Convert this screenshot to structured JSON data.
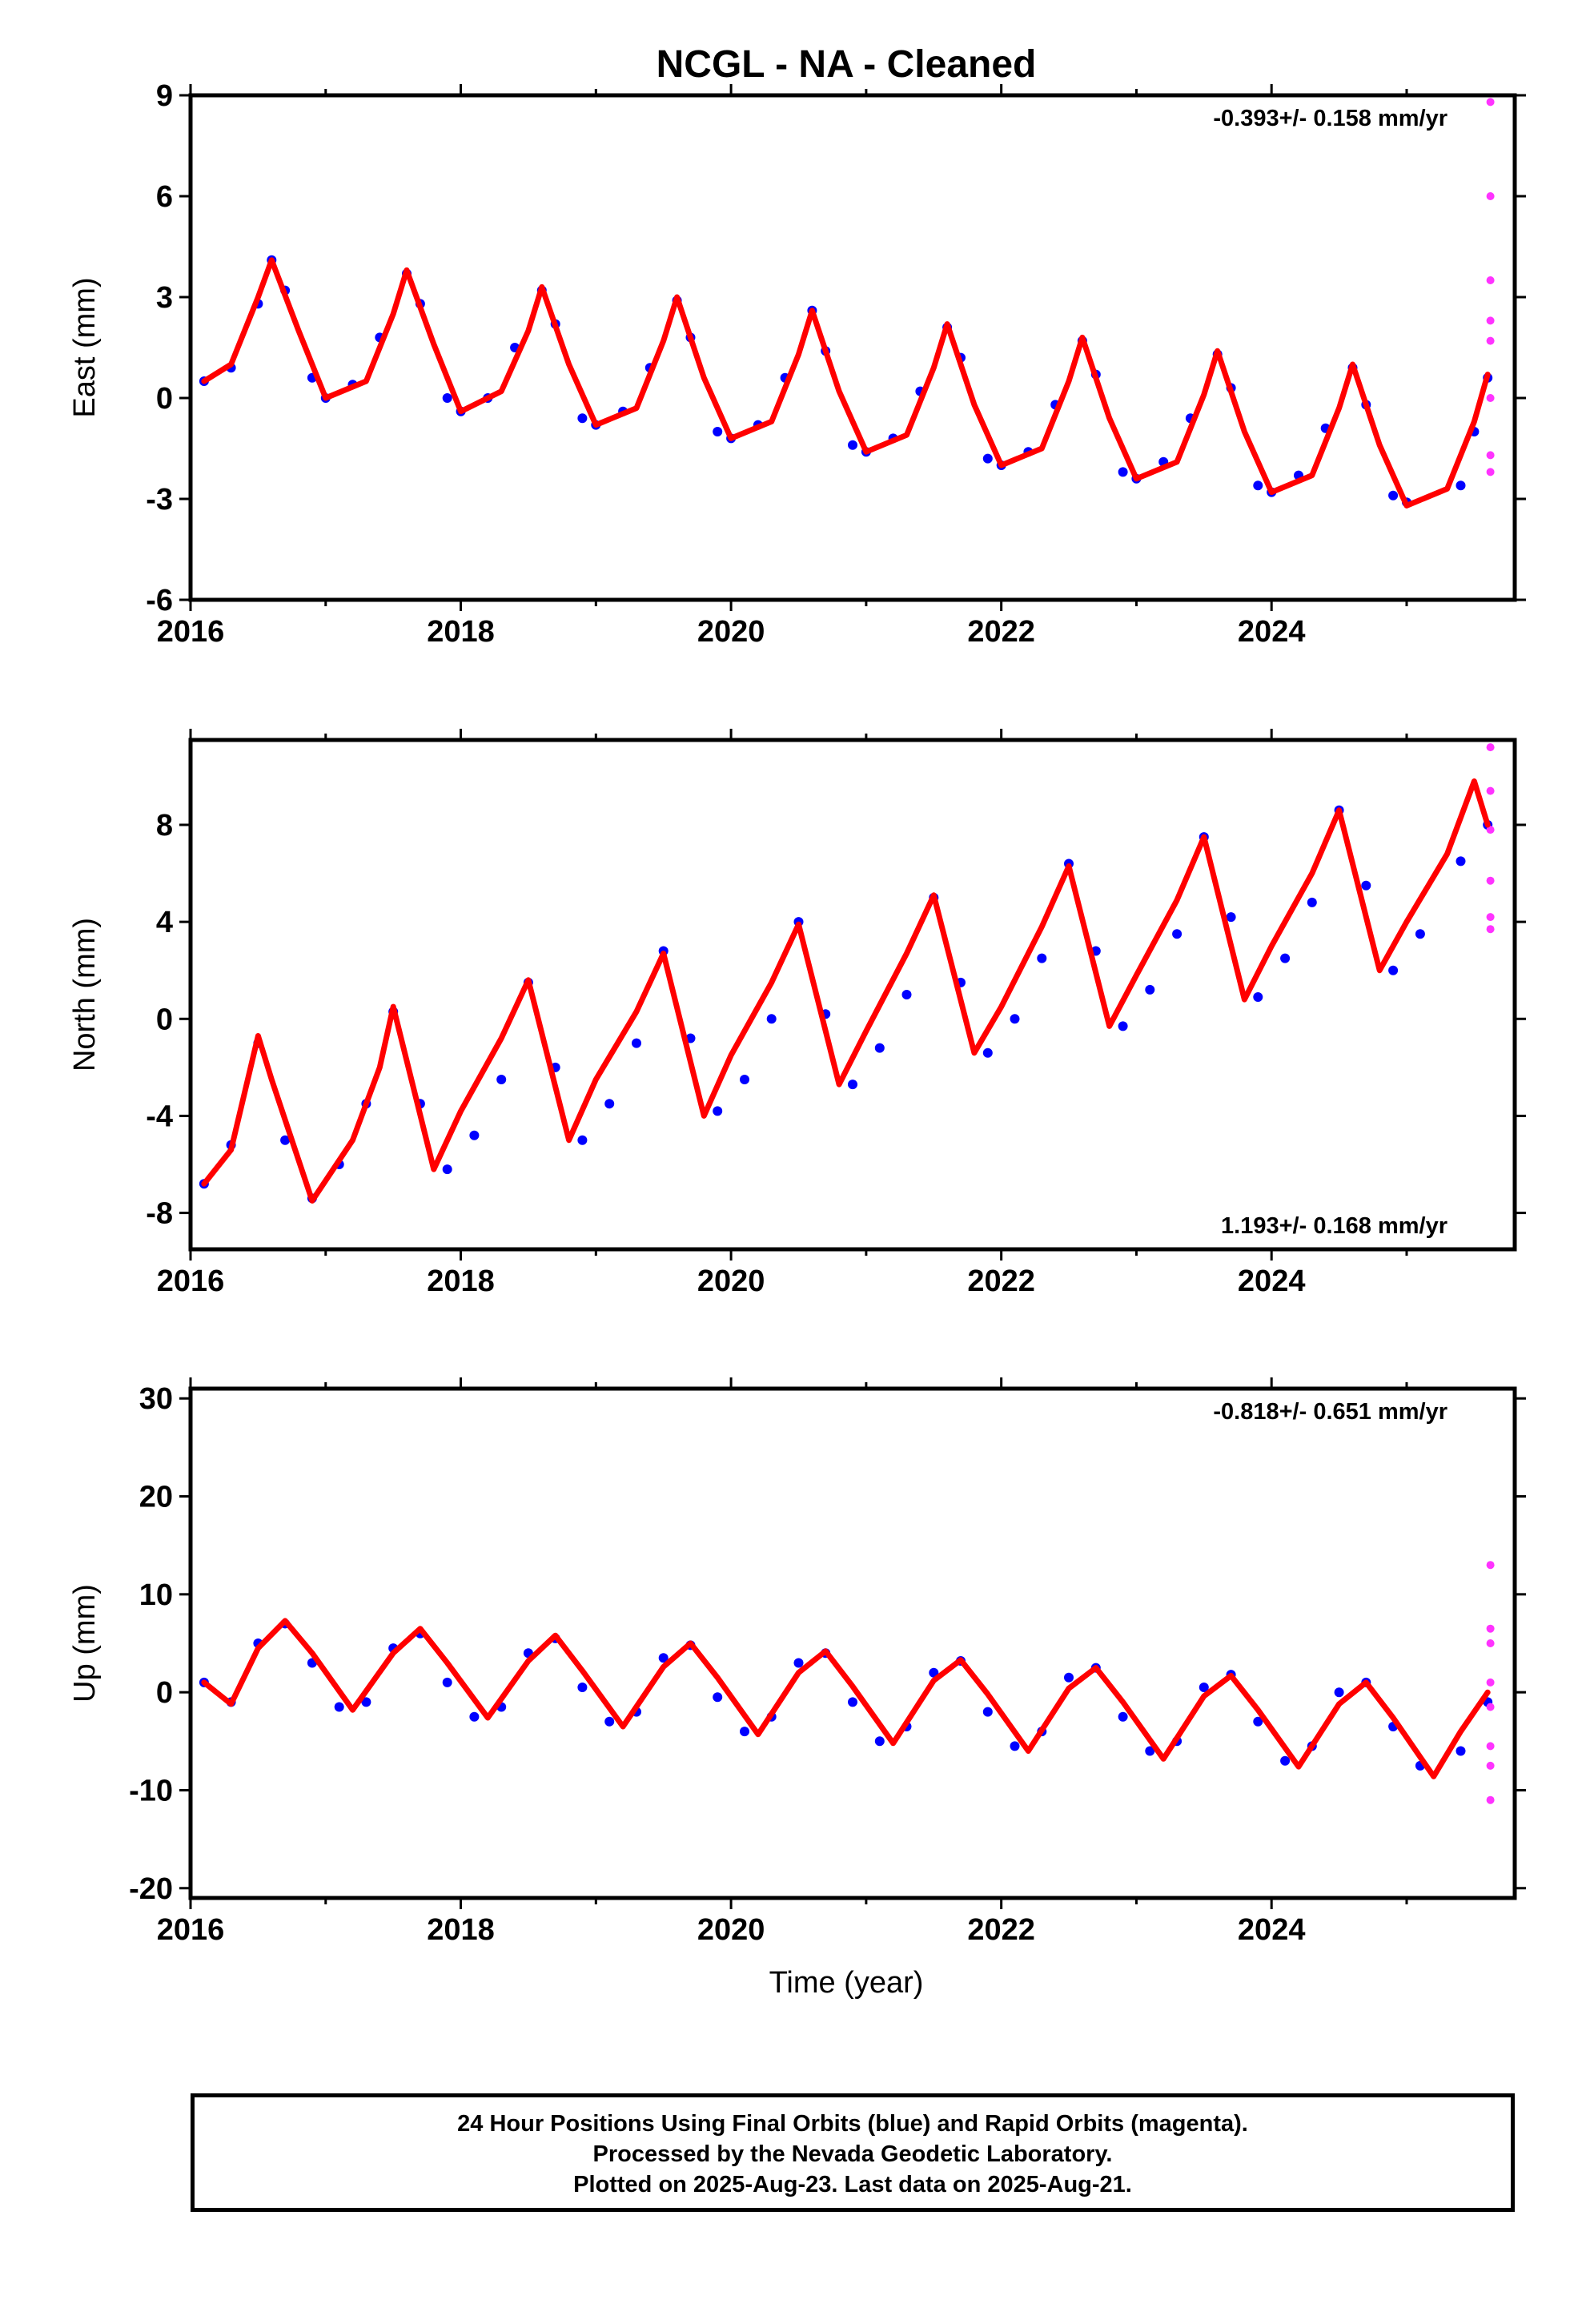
{
  "title": "NCGL  - NA - Cleaned",
  "xlabel": "Time (year)",
  "caption": [
    "24 Hour Positions Using Final Orbits (blue) and Rapid Orbits (magenta).",
    "Processed by the Nevada Geodetic Laboratory.",
    "Plotted on 2025-Aug-23. Last data on 2025-Aug-21."
  ],
  "colors": {
    "final_orbits": "#0000ff",
    "rapid_orbits": "#ff33ff",
    "model": "#ff0000",
    "axes": "#000000"
  },
  "chart_data": [
    {
      "type": "scatter",
      "ylabel": "East (mm)",
      "rate": "-0.393+/- 0.158 mm/yr",
      "rate_position": "top-right",
      "xlim": [
        2016.0,
        2025.8
      ],
      "ylim": [
        -6,
        9
      ],
      "xticks": [
        "2016",
        "2018",
        "2020",
        "2022",
        "2024"
      ],
      "yticks": [
        "9",
        "6",
        "3",
        "0",
        "-3",
        "-6"
      ],
      "grid": false,
      "series": [
        {
          "name": "Final Orbits",
          "color": "#0000ff",
          "x": [
            2016.1,
            2016.3,
            2016.5,
            2016.6,
            2016.7,
            2016.9,
            2017.0,
            2017.2,
            2017.4,
            2017.6,
            2017.7,
            2017.9,
            2018.0,
            2018.2,
            2018.4,
            2018.6,
            2018.7,
            2018.9,
            2019.0,
            2019.2,
            2019.4,
            2019.6,
            2019.7,
            2019.9,
            2020.0,
            2020.2,
            2020.4,
            2020.6,
            2020.7,
            2020.9,
            2021.0,
            2021.2,
            2021.4,
            2021.6,
            2021.7,
            2021.9,
            2022.0,
            2022.2,
            2022.4,
            2022.6,
            2022.7,
            2022.9,
            2023.0,
            2023.2,
            2023.4,
            2023.6,
            2023.7,
            2023.9,
            2024.0,
            2024.2,
            2024.4,
            2024.6,
            2024.7,
            2024.9,
            2025.0,
            2025.4,
            2025.5,
            2025.6
          ],
          "y": [
            0.5,
            0.9,
            2.8,
            4.1,
            3.2,
            0.6,
            0.0,
            0.4,
            1.8,
            3.7,
            2.8,
            0.0,
            -0.4,
            0.0,
            1.5,
            3.2,
            2.2,
            -0.6,
            -0.8,
            -0.4,
            0.9,
            2.9,
            1.8,
            -1.0,
            -1.2,
            -0.8,
            0.6,
            2.6,
            1.4,
            -1.4,
            -1.6,
            -1.2,
            0.2,
            2.1,
            1.2,
            -1.8,
            -2.0,
            -1.6,
            -0.2,
            1.7,
            0.7,
            -2.2,
            -2.4,
            -1.9,
            -0.6,
            1.3,
            0.3,
            -2.6,
            -2.8,
            -2.3,
            -0.9,
            0.9,
            -0.2,
            -2.9,
            -3.1,
            -2.6,
            -1.0,
            0.6
          ]
        },
        {
          "name": "Rapid Orbits",
          "color": "#ff33ff",
          "x": [
            2025.62,
            2025.62,
            2025.62,
            2025.62,
            2025.62,
            2025.62,
            2025.62,
            2025.62
          ],
          "y": [
            8.8,
            6.0,
            3.5,
            2.3,
            1.7,
            0.0,
            -1.7,
            -2.2
          ]
        },
        {
          "name": "Model",
          "color": "#ff0000",
          "x": [
            2016.1,
            2016.3,
            2016.5,
            2016.6,
            2016.8,
            2017.0,
            2017.3,
            2017.5,
            2017.6,
            2017.8,
            2018.0,
            2018.3,
            2018.5,
            2018.6,
            2018.8,
            2019.0,
            2019.3,
            2019.5,
            2019.6,
            2019.8,
            2020.0,
            2020.3,
            2020.5,
            2020.6,
            2020.8,
            2021.0,
            2021.3,
            2021.5,
            2021.6,
            2021.8,
            2022.0,
            2022.3,
            2022.5,
            2022.6,
            2022.8,
            2023.0,
            2023.3,
            2023.5,
            2023.6,
            2023.8,
            2024.0,
            2024.3,
            2024.5,
            2024.6,
            2024.8,
            2025.0,
            2025.3,
            2025.5,
            2025.6
          ],
          "y": [
            0.5,
            1.0,
            3.0,
            4.1,
            2.0,
            0.0,
            0.5,
            2.5,
            3.8,
            1.6,
            -0.4,
            0.2,
            2.0,
            3.3,
            1.0,
            -0.8,
            -0.3,
            1.7,
            3.0,
            0.6,
            -1.2,
            -0.7,
            1.3,
            2.6,
            0.2,
            -1.6,
            -1.1,
            0.9,
            2.2,
            -0.2,
            -2.0,
            -1.5,
            0.5,
            1.8,
            -0.6,
            -2.4,
            -1.9,
            0.1,
            1.4,
            -1.0,
            -2.8,
            -2.3,
            -0.3,
            1.0,
            -1.4,
            -3.2,
            -2.7,
            -0.7,
            0.7
          ]
        }
      ]
    },
    {
      "type": "scatter",
      "ylabel": "North (mm)",
      "rate": "1.193+/- 0.168 mm/yr",
      "rate_position": "bottom-right",
      "xlim": [
        2016.0,
        2025.8
      ],
      "ylim": [
        -9.5,
        11.5
      ],
      "xticks": [
        "2016",
        "2018",
        "2020",
        "2022",
        "2024"
      ],
      "yticks": [
        "8",
        "4",
        "0",
        "-4",
        "-8"
      ],
      "grid": false,
      "series": [
        {
          "name": "Final Orbits",
          "color": "#0000ff",
          "x": [
            2016.1,
            2016.3,
            2016.5,
            2016.7,
            2016.9,
            2017.1,
            2017.3,
            2017.5,
            2017.7,
            2017.9,
            2018.1,
            2018.3,
            2018.5,
            2018.7,
            2018.9,
            2019.1,
            2019.3,
            2019.5,
            2019.7,
            2019.9,
            2020.1,
            2020.3,
            2020.5,
            2020.7,
            2020.9,
            2021.1,
            2021.3,
            2021.5,
            2021.7,
            2021.9,
            2022.1,
            2022.3,
            2022.5,
            2022.7,
            2022.9,
            2023.1,
            2023.3,
            2023.5,
            2023.7,
            2023.9,
            2024.1,
            2024.3,
            2024.5,
            2024.7,
            2024.9,
            2025.1,
            2025.4,
            2025.6
          ],
          "y": [
            -6.8,
            -5.2,
            -1.0,
            -5.0,
            -7.4,
            -6.0,
            -3.5,
            0.3,
            -3.5,
            -6.2,
            -4.8,
            -2.5,
            1.5,
            -2.0,
            -5.0,
            -3.5,
            -1.0,
            2.8,
            -0.8,
            -3.8,
            -2.5,
            0.0,
            4.0,
            0.2,
            -2.7,
            -1.2,
            1.0,
            5.0,
            1.5,
            -1.4,
            0.0,
            2.5,
            6.4,
            2.8,
            -0.3,
            1.2,
            3.5,
            7.5,
            4.2,
            0.9,
            2.5,
            4.8,
            8.6,
            5.5,
            2.0,
            3.5,
            6.5,
            8.0
          ]
        },
        {
          "name": "Rapid Orbits",
          "color": "#ff33ff",
          "x": [
            2025.62,
            2025.62,
            2025.62,
            2025.62,
            2025.62,
            2025.62
          ],
          "y": [
            11.2,
            9.4,
            7.8,
            5.7,
            4.2,
            3.7
          ]
        },
        {
          "name": "Model",
          "color": "#ff0000",
          "x": [
            2016.1,
            2016.3,
            2016.5,
            2016.6,
            2016.9,
            2017.2,
            2017.4,
            2017.5,
            2017.8,
            2018.0,
            2018.3,
            2018.5,
            2018.8,
            2019.0,
            2019.3,
            2019.5,
            2019.8,
            2020.0,
            2020.3,
            2020.5,
            2020.8,
            2021.0,
            2021.3,
            2021.5,
            2021.8,
            2022.0,
            2022.3,
            2022.5,
            2022.8,
            2023.0,
            2023.3,
            2023.5,
            2023.8,
            2024.0,
            2024.3,
            2024.5,
            2024.8,
            2025.0,
            2025.3,
            2025.5,
            2025.6
          ],
          "y": [
            -6.8,
            -5.4,
            -0.7,
            -2.5,
            -7.5,
            -5.0,
            -2.0,
            0.5,
            -6.2,
            -3.8,
            -0.8,
            1.6,
            -5.0,
            -2.5,
            0.3,
            2.7,
            -4.0,
            -1.5,
            1.5,
            3.9,
            -2.7,
            -0.5,
            2.7,
            5.1,
            -1.4,
            0.5,
            3.8,
            6.3,
            -0.3,
            1.8,
            4.9,
            7.5,
            0.8,
            3.0,
            6.0,
            8.6,
            2.0,
            4.0,
            6.8,
            9.8,
            8.0
          ]
        }
      ]
    },
    {
      "type": "scatter",
      "ylabel": "Up (mm)",
      "rate": "-0.818+/- 0.651 mm/yr",
      "rate_position": "top-right",
      "xlim": [
        2016.0,
        2025.8
      ],
      "ylim": [
        -21,
        31
      ],
      "xticks": [
        "2016",
        "2018",
        "2020",
        "2022",
        "2024"
      ],
      "yticks": [
        "30",
        "20",
        "10",
        "0",
        "-10",
        "-20"
      ],
      "grid": false,
      "series": [
        {
          "name": "Final Orbits",
          "color": "#0000ff",
          "x": [
            2016.1,
            2016.3,
            2016.5,
            2016.7,
            2016.9,
            2017.1,
            2017.3,
            2017.5,
            2017.7,
            2017.9,
            2018.1,
            2018.3,
            2018.5,
            2018.7,
            2018.9,
            2019.1,
            2019.3,
            2019.5,
            2019.7,
            2019.9,
            2020.1,
            2020.3,
            2020.5,
            2020.7,
            2020.9,
            2021.1,
            2021.3,
            2021.5,
            2021.7,
            2021.9,
            2022.1,
            2022.3,
            2022.5,
            2022.7,
            2022.9,
            2023.1,
            2023.3,
            2023.5,
            2023.7,
            2023.9,
            2024.1,
            2024.3,
            2024.5,
            2024.7,
            2024.9,
            2025.1,
            2025.4,
            2025.6
          ],
          "y": [
            1.0,
            -1.0,
            5.0,
            7.0,
            3.0,
            -1.5,
            -1.0,
            4.5,
            6.0,
            1.0,
            -2.5,
            -1.5,
            4.0,
            5.5,
            0.5,
            -3.0,
            -2.0,
            3.5,
            4.8,
            -0.5,
            -4.0,
            -2.5,
            3.0,
            4.0,
            -1.0,
            -5.0,
            -3.5,
            2.0,
            3.2,
            -2.0,
            -5.5,
            -4.0,
            1.5,
            2.5,
            -2.5,
            -6.0,
            -5.0,
            0.5,
            1.8,
            -3.0,
            -7.0,
            -5.5,
            0.0,
            1.0,
            -3.5,
            -7.5,
            -6.0,
            -1.0
          ]
        },
        {
          "name": "Rapid Orbits",
          "color": "#ff33ff",
          "x": [
            2025.62,
            2025.62,
            2025.62,
            2025.62,
            2025.62,
            2025.62,
            2025.62,
            2025.62
          ],
          "y": [
            13.0,
            6.5,
            5.0,
            1.0,
            -1.5,
            -5.5,
            -7.5,
            -11.0
          ]
        },
        {
          "name": "Model",
          "color": "#ff0000",
          "x": [
            2016.1,
            2016.3,
            2016.5,
            2016.7,
            2016.9,
            2017.2,
            2017.5,
            2017.7,
            2017.9,
            2018.2,
            2018.5,
            2018.7,
            2018.9,
            2019.2,
            2019.5,
            2019.7,
            2019.9,
            2020.2,
            2020.5,
            2020.7,
            2020.9,
            2021.2,
            2021.5,
            2021.7,
            2021.9,
            2022.2,
            2022.5,
            2022.7,
            2022.9,
            2023.2,
            2023.5,
            2023.7,
            2023.9,
            2024.2,
            2024.5,
            2024.7,
            2024.9,
            2025.2,
            2025.4,
            2025.6
          ],
          "y": [
            1.0,
            -1.2,
            4.5,
            7.3,
            4.0,
            -1.8,
            4.0,
            6.5,
            3.0,
            -2.6,
            3.2,
            5.8,
            2.2,
            -3.5,
            2.6,
            5.0,
            1.5,
            -4.3,
            2.0,
            4.2,
            0.6,
            -5.2,
            1.2,
            3.3,
            -0.2,
            -6.0,
            0.4,
            2.5,
            -1.0,
            -6.8,
            -0.4,
            1.7,
            -1.8,
            -7.6,
            -1.2,
            1.0,
            -2.6,
            -8.6,
            -4.0,
            0.0
          ]
        }
      ]
    }
  ]
}
